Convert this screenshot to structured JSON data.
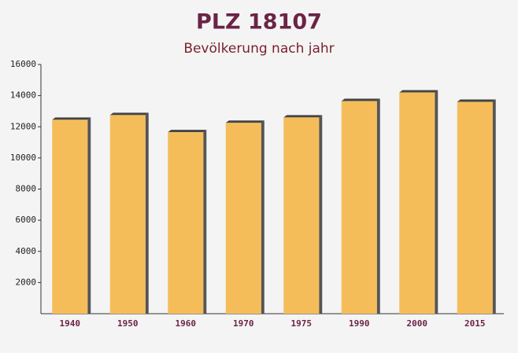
{
  "chart_data": {
    "type": "bar",
    "title": "PLZ 18107",
    "subtitle": "Bevölkerung nach jahr",
    "categories": [
      "1940",
      "1950",
      "1960",
      "1970",
      "1975",
      "1990",
      "2000",
      "2015"
    ],
    "values": [
      12450,
      12750,
      11650,
      12250,
      12600,
      13650,
      14200,
      13600
    ],
    "color": "#f5bd5a",
    "ylim": [
      0,
      16000
    ],
    "yticks": [
      2000,
      4000,
      6000,
      8000,
      10000,
      12000,
      14000,
      16000
    ],
    "grid": false
  }
}
